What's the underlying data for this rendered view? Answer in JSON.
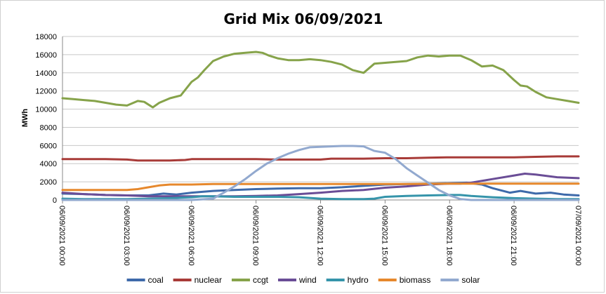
{
  "chart_data": {
    "type": "line",
    "title": "Grid Mix 06/09/2021",
    "xlabel": "",
    "ylabel": "MWh",
    "ylim": [
      0,
      18000
    ],
    "yticks": [
      0,
      2000,
      4000,
      6000,
      8000,
      10000,
      12000,
      14000,
      16000,
      18000
    ],
    "xlim": [
      0,
      24
    ],
    "xticks": [
      0,
      3,
      6,
      9,
      12,
      15,
      18,
      21,
      24
    ],
    "x_tick_labels": [
      "06/09/2021 00:00",
      "06/09/2021 03:00",
      "06/09/2021 06:00",
      "06/09/2021 09:00",
      "06/09/2021 12:00",
      "06/09/2021 15:00",
      "06/09/2021 18:00",
      "06/09/2021 21:00",
      "07/09/2021 00:00"
    ],
    "grid": "horizontal",
    "legend_position": "bottom",
    "series": [
      {
        "name": "coal",
        "color": "#3e6aaa",
        "x": [
          0,
          1,
          2,
          3,
          4,
          4.7,
          5.3,
          6,
          7,
          8,
          9,
          10,
          11,
          12,
          13,
          14,
          15,
          16,
          17,
          18,
          18.8,
          19.5,
          20,
          20.8,
          21.3,
          22,
          22.7,
          23.3,
          24
        ],
        "values": [
          700,
          650,
          550,
          500,
          500,
          700,
          600,
          800,
          1000,
          1100,
          1200,
          1250,
          1300,
          1300,
          1400,
          1550,
          1700,
          1750,
          1800,
          1850,
          1900,
          1700,
          1300,
          800,
          1000,
          700,
          800,
          600,
          500
        ]
      },
      {
        "name": "nuclear",
        "color": "#a83b38",
        "x": [
          0,
          2,
          3,
          3.5,
          4,
          5,
          5.7,
          6,
          7,
          8,
          9,
          10,
          11,
          12,
          12.5,
          13,
          14,
          15,
          16,
          17,
          18,
          19,
          20,
          21,
          22,
          23,
          24
        ],
        "values": [
          4500,
          4500,
          4450,
          4350,
          4350,
          4350,
          4400,
          4500,
          4500,
          4500,
          4500,
          4450,
          4450,
          4450,
          4550,
          4550,
          4550,
          4600,
          4600,
          4650,
          4700,
          4700,
          4700,
          4700,
          4750,
          4800,
          4800
        ]
      },
      {
        "name": "ccgt",
        "color": "#86a34a",
        "x": [
          0,
          0.5,
          1,
          1.5,
          2,
          2.5,
          3,
          3.5,
          3.8,
          4.2,
          4.5,
          5,
          5.5,
          6,
          6.3,
          6.6,
          7,
          7.5,
          8,
          8.5,
          9,
          9.3,
          9.6,
          10,
          10.5,
          11,
          11.5,
          12,
          12.5,
          13,
          13.5,
          14,
          14.5,
          15,
          15.5,
          16,
          16.5,
          17,
          17.5,
          18,
          18.5,
          19,
          19.5,
          20,
          20.5,
          21,
          21.3,
          21.6,
          22,
          22.5,
          23,
          23.5,
          24
        ],
        "values": [
          11200,
          11100,
          11000,
          10900,
          10700,
          10500,
          10400,
          10900,
          10800,
          10200,
          10700,
          11200,
          11500,
          13000,
          13500,
          14300,
          15300,
          15800,
          16100,
          16200,
          16300,
          16200,
          15900,
          15600,
          15400,
          15400,
          15500,
          15400,
          15200,
          14900,
          14300,
          14000,
          15000,
          15100,
          15200,
          15300,
          15700,
          15900,
          15800,
          15900,
          15900,
          15400,
          14700,
          14800,
          14300,
          13200,
          12600,
          12500,
          11900,
          11300,
          11100,
          10900,
          10700
        ]
      },
      {
        "name": "wind",
        "color": "#6a4d96",
        "x": [
          0,
          1,
          2,
          3,
          4,
          5,
          6,
          7,
          8,
          9,
          10,
          11,
          12,
          13,
          14,
          15,
          16,
          17,
          18,
          18.5,
          19,
          20,
          21,
          21.5,
          22,
          23,
          24
        ],
        "values": [
          800,
          650,
          550,
          500,
          400,
          400,
          400,
          400,
          400,
          450,
          500,
          650,
          800,
          1000,
          1100,
          1350,
          1500,
          1700,
          1800,
          1800,
          1900,
          2300,
          2700,
          2900,
          2800,
          2500,
          2400
        ]
      },
      {
        "name": "hydro",
        "color": "#3594aa",
        "x": [
          0,
          1,
          2,
          3,
          4,
          5,
          6,
          6.5,
          7,
          8,
          9,
          10,
          11,
          12,
          13,
          14,
          14.5,
          15,
          16,
          17,
          18,
          18.5,
          19,
          20,
          21,
          22,
          23,
          24
        ],
        "values": [
          150,
          100,
          100,
          100,
          150,
          200,
          300,
          400,
          400,
          350,
          350,
          350,
          300,
          150,
          100,
          100,
          150,
          350,
          450,
          500,
          550,
          550,
          450,
          300,
          200,
          150,
          100,
          100
        ]
      },
      {
        "name": "biomass",
        "color": "#e6882c",
        "x": [
          0,
          1,
          2,
          3,
          3.5,
          4,
          4.5,
          5,
          5.3,
          6,
          7,
          8,
          9,
          10,
          12,
          14,
          16,
          18,
          20,
          22,
          24
        ],
        "values": [
          1100,
          1100,
          1100,
          1100,
          1200,
          1400,
          1600,
          1700,
          1700,
          1700,
          1750,
          1750,
          1750,
          1750,
          1750,
          1750,
          1750,
          1800,
          1800,
          1800,
          1800
        ]
      },
      {
        "name": "solar",
        "color": "#92a9cf",
        "x": [
          0,
          5,
          6,
          7,
          7.5,
          8,
          8.5,
          9,
          9.5,
          10,
          10.5,
          11,
          11.5,
          12,
          12.5,
          13,
          13.5,
          14,
          14.5,
          15,
          15.5,
          16,
          16.5,
          17,
          17.5,
          18,
          18.5,
          19,
          20,
          21,
          22,
          23,
          24
        ],
        "values": [
          0,
          0,
          0,
          150,
          800,
          1500,
          2300,
          3200,
          4000,
          4600,
          5100,
          5500,
          5800,
          5850,
          5900,
          5950,
          5950,
          5900,
          5400,
          5200,
          4500,
          3500,
          2700,
          1900,
          1100,
          500,
          100,
          0,
          0,
          0,
          0,
          0,
          0
        ]
      }
    ]
  }
}
